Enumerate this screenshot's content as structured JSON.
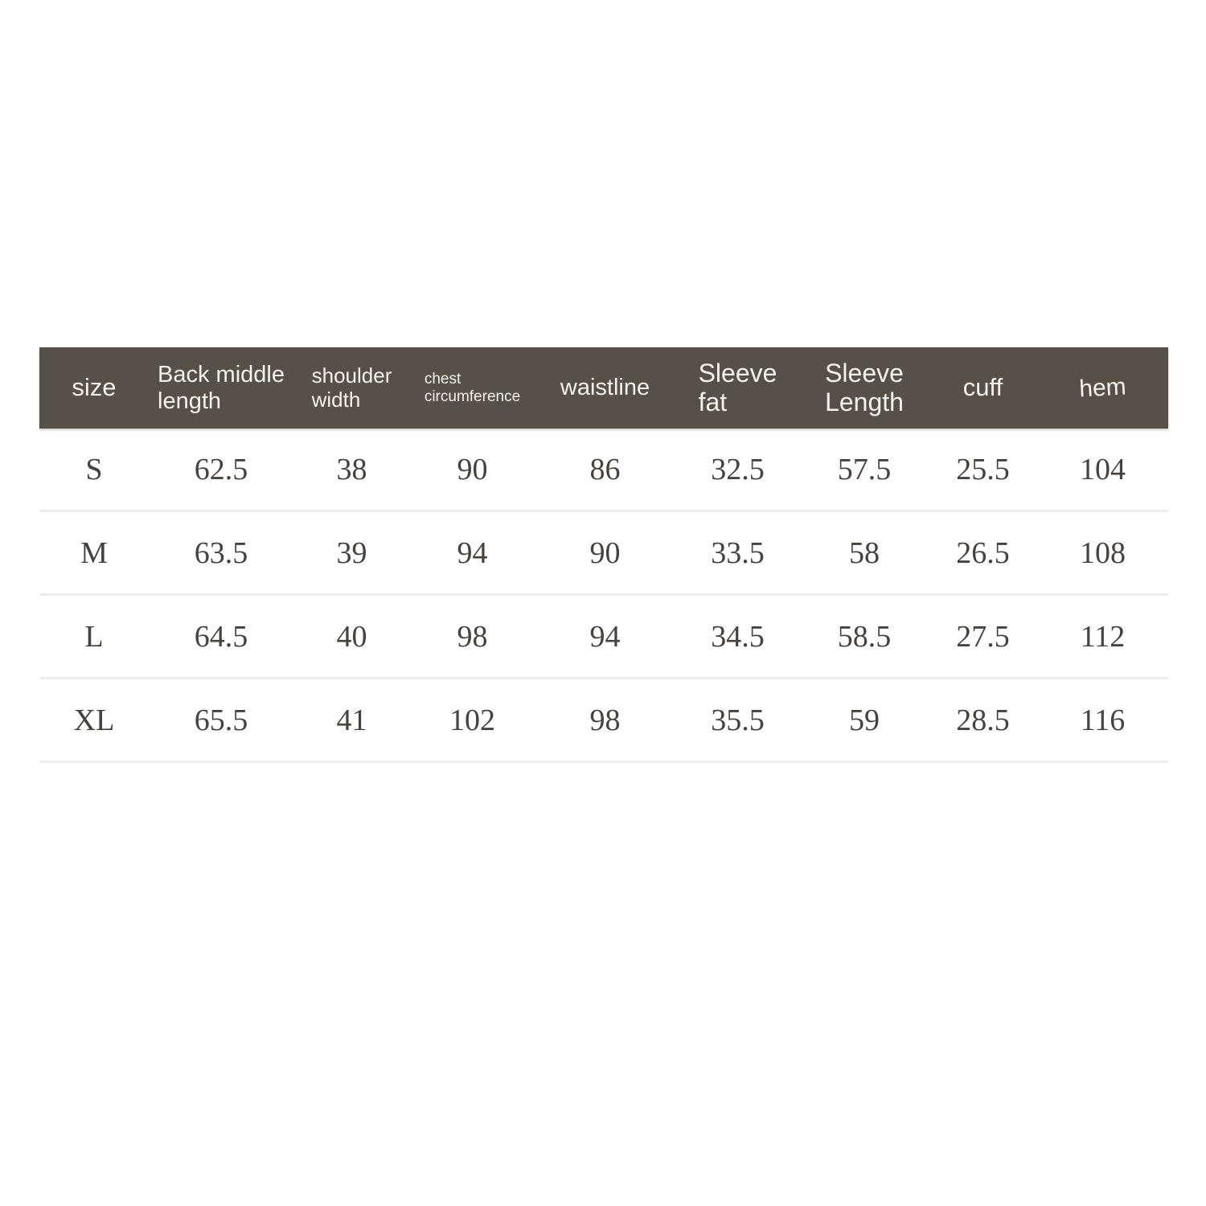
{
  "table": {
    "header": {
      "labels": [
        "size",
        "Back middle\nlength",
        "shoulder\nwidth",
        "chest\ncircumference",
        "waistline",
        "Sleeve\nfat",
        "Sleeve\nLength",
        "cuff",
        "hem"
      ]
    },
    "rows": [
      {
        "cells": [
          "S",
          "62.5",
          "38",
          "90",
          "86",
          "32.5",
          "57.5",
          "25.5",
          "104"
        ]
      },
      {
        "cells": [
          "M",
          "63.5",
          "39",
          "94",
          "90",
          "33.5",
          "58",
          "26.5",
          "108"
        ]
      },
      {
        "cells": [
          "L",
          "64.5",
          "40",
          "98",
          "94",
          "34.5",
          "58.5",
          "27.5",
          "112"
        ]
      },
      {
        "cells": [
          "XL",
          "65.5",
          "41",
          "102",
          "98",
          "35.5",
          "59",
          "28.5",
          "116"
        ]
      }
    ]
  },
  "colors": {
    "header_bg": "#575046",
    "header_text": "#f4f2ed",
    "body_text": "#454240",
    "divider": "#ededed",
    "page_bg": "#ffffff"
  },
  "chart_data": {
    "type": "table",
    "columns": [
      "size",
      "Back middle length",
      "shoulder width",
      "chest circumference",
      "waistline",
      "Sleeve fat",
      "Sleeve Length",
      "cuff",
      "hem"
    ],
    "rows": [
      [
        "S",
        62.5,
        38,
        90,
        86,
        32.5,
        57.5,
        25.5,
        104
      ],
      [
        "M",
        63.5,
        39,
        94,
        90,
        33.5,
        58,
        26.5,
        108
      ],
      [
        "L",
        64.5,
        40,
        98,
        94,
        34.5,
        58.5,
        27.5,
        112
      ],
      [
        "XL",
        65.5,
        41,
        102,
        98,
        35.5,
        59,
        28.5,
        116
      ]
    ]
  }
}
